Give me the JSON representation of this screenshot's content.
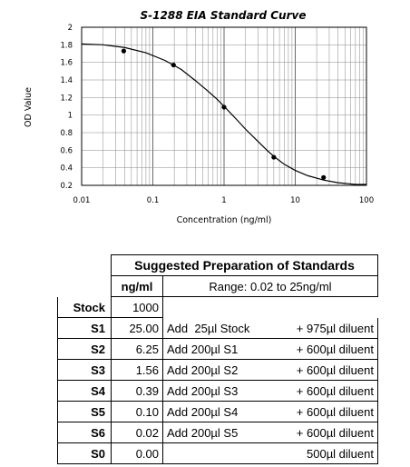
{
  "chart_data": {
    "type": "scatter",
    "title": "S-1288 EIA Standard Curve",
    "xlabel": "Concentration (ng/ml)",
    "ylabel": "OD Value",
    "xscale": "log",
    "xlim": [
      0.01,
      100
    ],
    "ylim": [
      0.2,
      2.0
    ],
    "grid": true,
    "x_ticks": [
      "0.01",
      "0.1",
      "1",
      "10",
      "100"
    ],
    "y_ticks": [
      "0.2",
      "0.4",
      "0.6",
      "0.8",
      "1",
      "1.2",
      "1.4",
      "1.6",
      "1.8",
      "2"
    ],
    "series": [
      {
        "points": {
          "x": [
            0.039,
            0.195,
            1.0,
            5.0,
            25.0
          ],
          "y": [
            1.73,
            1.57,
            1.09,
            0.52,
            0.29
          ]
        },
        "fit_curve": {
          "x": [
            0.01,
            0.02,
            0.04,
            0.08,
            0.15,
            0.25,
            0.4,
            0.6,
            0.8,
            1.0,
            1.5,
            2,
            3,
            4,
            5,
            7,
            10,
            15,
            25,
            40,
            70,
            100
          ],
          "y": [
            1.81,
            1.8,
            1.77,
            1.71,
            1.62,
            1.52,
            1.39,
            1.27,
            1.18,
            1.1,
            0.95,
            0.84,
            0.7,
            0.6,
            0.53,
            0.44,
            0.37,
            0.31,
            0.26,
            0.23,
            0.21,
            0.21
          ]
        }
      }
    ]
  },
  "table": {
    "title": "Suggested Preparation of Standards",
    "col_unit": "ng/ml",
    "range": "Range: 0.02 to 25ng/ml",
    "stock": {
      "label": "Stock",
      "conc": "1000"
    },
    "rows": [
      {
        "label": "S1",
        "conc": "25.00",
        "add": "Add  25µl Stock",
        "diluent": "+ 975µl diluent"
      },
      {
        "label": "S2",
        "conc": "6.25",
        "add": "Add 200µl S1",
        "diluent": "+ 600µl diluent"
      },
      {
        "label": "S3",
        "conc": "1.56",
        "add": "Add 200µl S2",
        "diluent": "+ 600µl diluent"
      },
      {
        "label": "S4",
        "conc": "0.39",
        "add": "Add 200µl S3",
        "diluent": "+ 600µl diluent"
      },
      {
        "label": "S5",
        "conc": "0.10",
        "add": "Add 200µl S4",
        "diluent": "+ 600µl diluent"
      },
      {
        "label": "S6",
        "conc": "0.02",
        "add": "Add 200µl S5",
        "diluent": "+ 600µl diluent"
      },
      {
        "label": "S0",
        "conc": "0.00",
        "add": "",
        "diluent": "500µl diluent"
      }
    ]
  }
}
